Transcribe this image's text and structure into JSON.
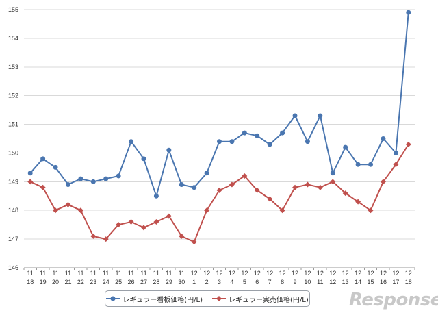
{
  "chart_data": {
    "type": "line",
    "categories": [
      [
        "11",
        "18"
      ],
      [
        "11",
        "19"
      ],
      [
        "11",
        "20"
      ],
      [
        "11",
        "21"
      ],
      [
        "11",
        "22"
      ],
      [
        "11",
        "23"
      ],
      [
        "11",
        "24"
      ],
      [
        "11",
        "25"
      ],
      [
        "11",
        "26"
      ],
      [
        "11",
        "27"
      ],
      [
        "11",
        "28"
      ],
      [
        "11",
        "29"
      ],
      [
        "11",
        "30"
      ],
      [
        "12",
        "1"
      ],
      [
        "12",
        "2"
      ],
      [
        "12",
        "3"
      ],
      [
        "12",
        "4"
      ],
      [
        "12",
        "5"
      ],
      [
        "12",
        "6"
      ],
      [
        "12",
        "7"
      ],
      [
        "12",
        "8"
      ],
      [
        "12",
        "9"
      ],
      [
        "12",
        "10"
      ],
      [
        "12",
        "11"
      ],
      [
        "12",
        "12"
      ],
      [
        "12",
        "13"
      ],
      [
        "12",
        "14"
      ],
      [
        "12",
        "15"
      ],
      [
        "12",
        "16"
      ],
      [
        "12",
        "17"
      ],
      [
        "12",
        "18"
      ]
    ],
    "ylim": [
      146,
      155
    ],
    "yticks": [
      "146",
      "147",
      "148",
      "149",
      "150",
      "151",
      "152",
      "153",
      "154",
      "155"
    ],
    "grid": true,
    "legend_position": "bottom",
    "series": [
      {
        "name": "レギュラー看板価格(円/L)",
        "color": "#4a76b0",
        "marker": "circle",
        "values": [
          149.3,
          149.8,
          149.5,
          148.9,
          149.1,
          149.0,
          149.1,
          149.2,
          150.4,
          149.8,
          148.5,
          150.1,
          148.9,
          148.8,
          149.3,
          150.4,
          150.4,
          150.7,
          150.6,
          150.3,
          150.7,
          151.3,
          150.4,
          151.3,
          149.3,
          150.2,
          149.6,
          149.6,
          150.5,
          150.0,
          154.9
        ]
      },
      {
        "name": "レギュラー実売価格(円/L)",
        "color": "#c0504d",
        "marker": "diamond",
        "values": [
          149.0,
          148.8,
          148.0,
          148.2,
          148.0,
          147.1,
          147.0,
          147.5,
          147.6,
          147.4,
          147.6,
          147.8,
          147.1,
          146.9,
          148.0,
          148.7,
          148.9,
          149.2,
          148.7,
          148.4,
          148.0,
          148.8,
          148.9,
          148.8,
          149.0,
          148.6,
          148.3,
          148.0,
          149.0,
          149.6,
          150.3
        ]
      }
    ]
  },
  "watermark": "Response."
}
